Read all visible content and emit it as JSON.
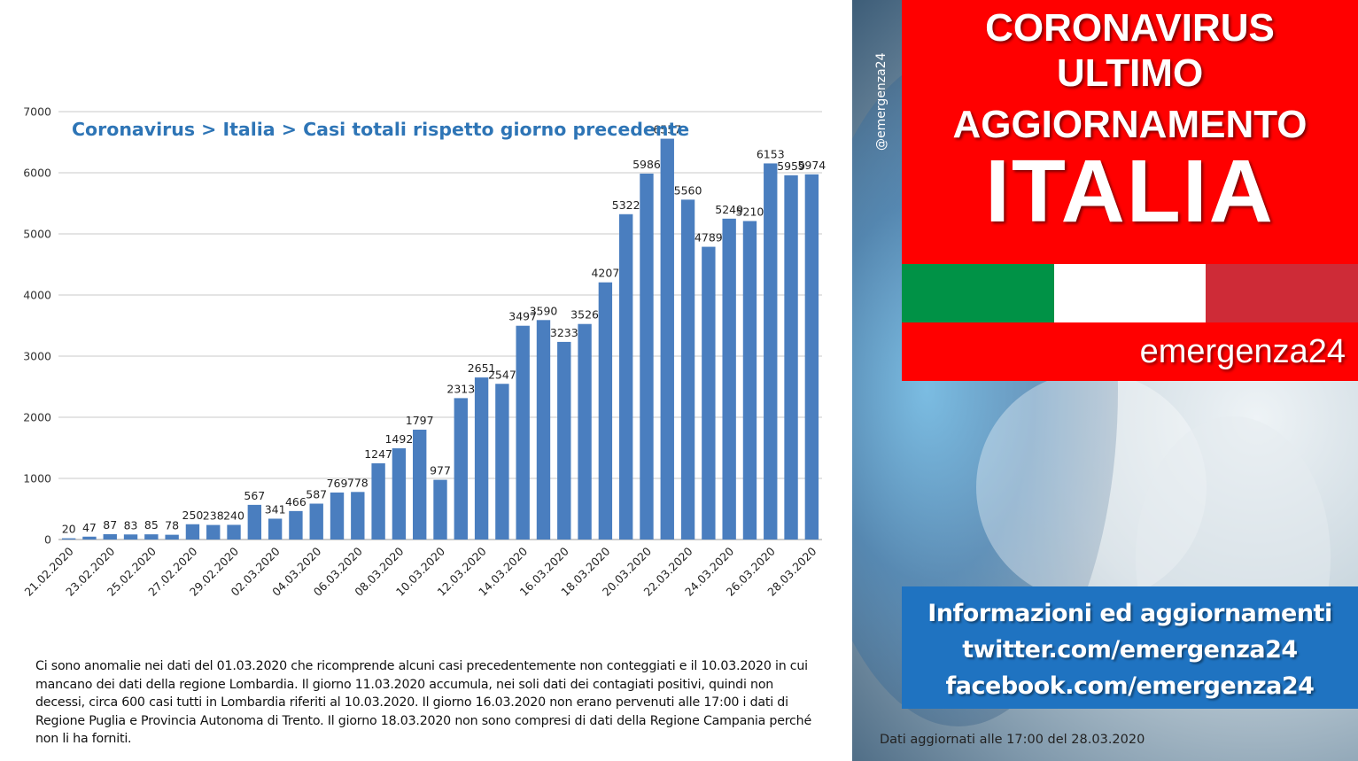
{
  "chart_data": {
    "type": "bar",
    "title": "Coronavirus > Italia > Casi totali rispetto giorno precedente",
    "categories": [
      "21.02.2020",
      "22.02.2020",
      "23.02.2020",
      "24.02.2020",
      "25.02.2020",
      "26.02.2020",
      "27.02.2020",
      "28.02.2020",
      "29.02.2020",
      "01.03.2020",
      "02.03.2020",
      "03.03.2020",
      "04.03.2020",
      "05.03.2020",
      "06.03.2020",
      "07.03.2020",
      "08.03.2020",
      "09.03.2020",
      "10.03.2020",
      "11.03.2020",
      "12.03.2020",
      "13.03.2020",
      "14.03.2020",
      "15.03.2020",
      "16.03.2020",
      "17.03.2020",
      "18.03.2020",
      "19.03.2020",
      "20.03.2020",
      "21.03.2020",
      "22.03.2020",
      "23.03.2020",
      "24.03.2020",
      "25.03.2020",
      "26.03.2020",
      "27.03.2020",
      "28.03.2020"
    ],
    "x_tick_labels": [
      "21.02.2020",
      "23.02.2020",
      "25.02.2020",
      "27.02.2020",
      "29.02.2020",
      "02.03.2020",
      "04.03.2020",
      "06.03.2020",
      "08.03.2020",
      "10.03.2020",
      "12.03.2020",
      "14.03.2020",
      "16.03.2020",
      "18.03.2020",
      "20.03.2020",
      "22.03.2020",
      "24.03.2020",
      "26.03.2020",
      "28.03.2020"
    ],
    "values": [
      20,
      47,
      87,
      83,
      85,
      78,
      250,
      238,
      240,
      567,
      341,
      466,
      587,
      769,
      778,
      1247,
      1492,
      1797,
      977,
      2313,
      2651,
      2547,
      3497,
      3590,
      3233,
      3526,
      4207,
      5322,
      5986,
      6557,
      5560,
      4789,
      5249,
      5210,
      6153,
      5959,
      5974
    ],
    "y_ticks": [
      0,
      1000,
      2000,
      3000,
      4000,
      5000,
      6000,
      7000
    ],
    "ylim": [
      0,
      7000
    ],
    "grid": true,
    "bar_color": "#4a7ebf",
    "title_color": "#2e75b6"
  },
  "note": "Ci sono anomalie nei dati del 01.03.2020 che ricomprende alcuni casi precedentemente non conteggiati e il 10.03.2020 in cui mancano dei dati della regione Lombardia. Il giorno 11.03.2020 accumula, nei soli dati dei contagiati positivi, quindi non decessi, circa 600 casi tutti in Lombardia riferiti al 10.03.2020. Il giorno 16.03.2020 non erano pervenuti alle 17:00 i dati di Regione Puglia e Provincia Autonoma di Trento. Il giorno 18.03.2020 non sono compresi di dati della Regione Campania perché non li ha forniti.",
  "banner": {
    "line1": "CORONAVIRUS",
    "line2": "ULTIMO",
    "line3": "AGGIORNAMENTO",
    "line4": "ITALIA"
  },
  "brand": "emergenza24",
  "handle": "@emergenza24",
  "info": {
    "line1": "Informazioni ed aggiornamenti",
    "line2": "twitter.com/emergenza24",
    "line3": "facebook.com/emergenza24"
  },
  "updated": "Dati aggiornati alle 17:00 del 28.03.2020",
  "colors": {
    "banner_red": "#ff0000",
    "flag_green": "#009246",
    "flag_white": "#ffffff",
    "flag_red": "#ce2b37",
    "info_blue": "#1f73c1"
  }
}
